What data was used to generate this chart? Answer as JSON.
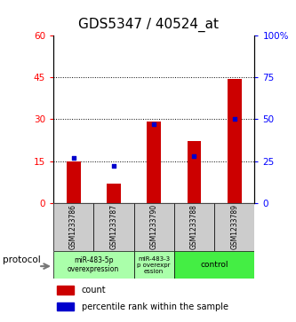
{
  "title": "GDS5347 / 40524_at",
  "samples": [
    "GSM1233786",
    "GSM1233787",
    "GSM1233790",
    "GSM1233788",
    "GSM1233789"
  ],
  "count_values": [
    15.0,
    7.0,
    29.0,
    22.0,
    44.5
  ],
  "percentile_values": [
    27,
    22,
    47,
    28,
    50
  ],
  "left_ylim": [
    0,
    60
  ],
  "right_ylim": [
    0,
    100
  ],
  "left_yticks": [
    0,
    15,
    30,
    45,
    60
  ],
  "left_yticklabels": [
    "0",
    "15",
    "30",
    "45",
    "60"
  ],
  "right_yticks": [
    0,
    25,
    50,
    75,
    100
  ],
  "right_yticklabels": [
    "0",
    "25",
    "50",
    "75",
    "100%"
  ],
  "dotted_lines": [
    15,
    30,
    45
  ],
  "bar_color": "#cc0000",
  "dot_color": "#0000cc",
  "proto1_label": "miR-483-5p\noverexpression",
  "proto2_label": "miR-483-3\np overexpr\nession",
  "proto3_label": "control",
  "proto12_color": "#aaffaa",
  "proto3_color": "#44ee44",
  "sample_box_color": "#cccccc",
  "legend_count_label": "count",
  "legend_pct_label": "percentile rank within the sample",
  "protocol_text": "protocol",
  "bar_width": 0.35,
  "title_fontsize": 11,
  "tick_fontsize": 7.5,
  "sample_fontsize": 5.5,
  "proto_fontsize": 5.5,
  "legend_fontsize": 7
}
